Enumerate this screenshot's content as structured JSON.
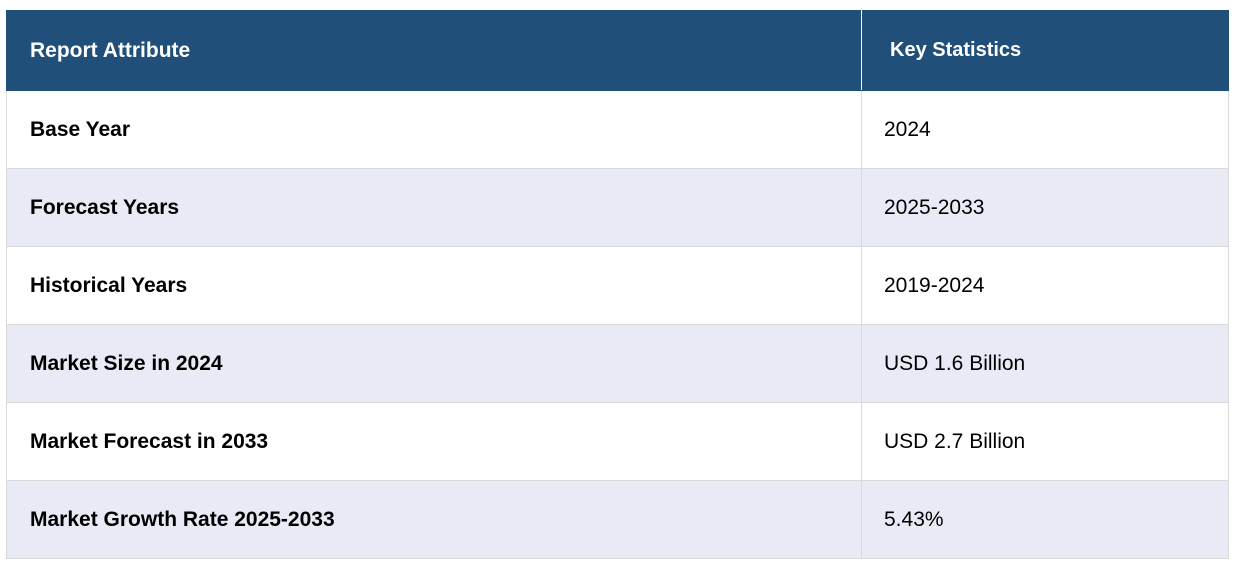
{
  "table": {
    "headers": {
      "attribute": "Report Attribute",
      "statistics": "Key Statistics"
    },
    "rows": [
      {
        "attribute": "Base Year",
        "value": "2024"
      },
      {
        "attribute": "Forecast Years",
        "value": "2025-2033"
      },
      {
        "attribute": "Historical Years",
        "value": "2019-2024"
      },
      {
        "attribute": "Market Size in 2024",
        "value": "USD 1.6 Billion"
      },
      {
        "attribute": "Market Forecast in 2033",
        "value": "USD 2.7 Billion"
      },
      {
        "attribute": "Market Growth Rate 2025-2033",
        "value": "5.43%"
      }
    ]
  },
  "colors": {
    "header_background": "#204f79",
    "header_text": "#ffffff",
    "row_alt_background": "#e8eaf5",
    "border": "#d9d9d9"
  }
}
